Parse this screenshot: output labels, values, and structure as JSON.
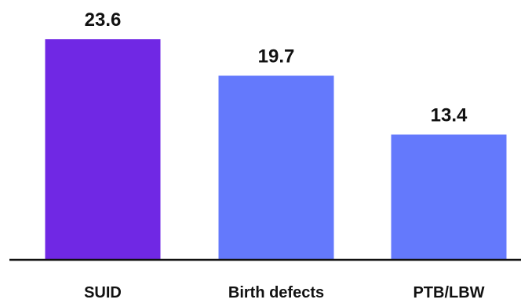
{
  "chart_data": {
    "type": "bar",
    "title": "",
    "xlabel": "",
    "ylabel": "",
    "categories": [
      "SUID",
      "Birth defects",
      "PTB/LBW"
    ],
    "values": [
      23.6,
      19.7,
      13.4
    ],
    "value_labels": [
      "23.6",
      "19.7",
      "13.4"
    ],
    "bar_colors": [
      "#7028e4",
      "#6479fc",
      "#6479fc"
    ],
    "ylim": [
      0,
      27
    ],
    "grid": false,
    "legend": "none"
  }
}
